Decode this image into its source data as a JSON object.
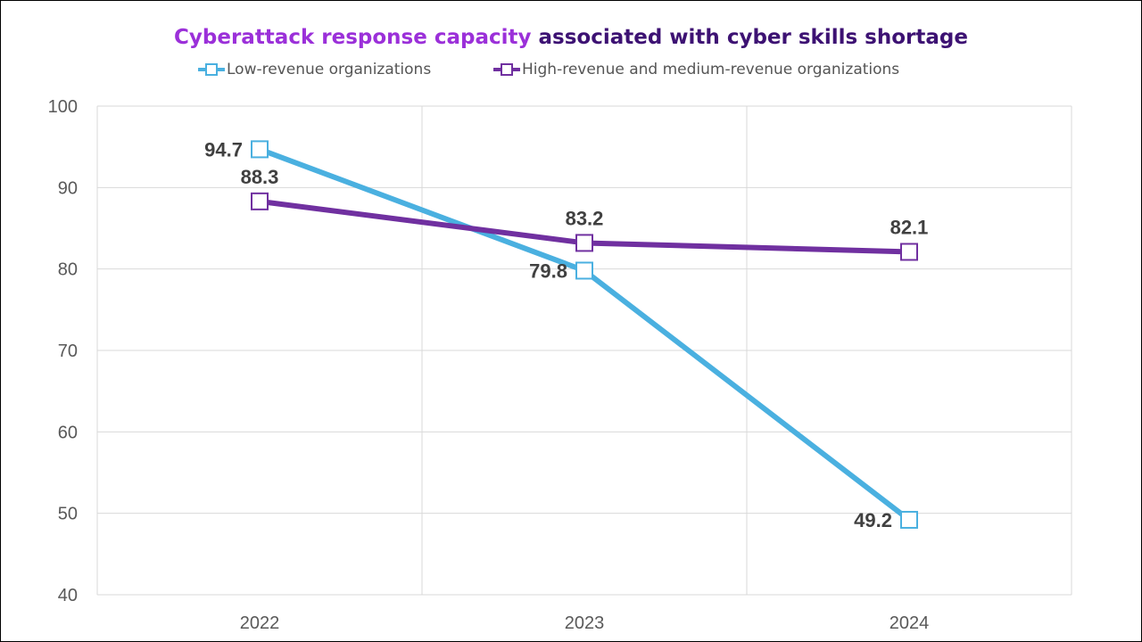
{
  "chart_data": {
    "type": "line",
    "title_part1": "Cyberattack response capacity",
    "title_part2": "associated with cyber skills shortage",
    "categories": [
      "2022",
      "2023",
      "2024"
    ],
    "ylim": [
      40,
      100
    ],
    "yticks": [
      40,
      50,
      60,
      70,
      80,
      90,
      100
    ],
    "grid": true,
    "legend_position": "top",
    "series": [
      {
        "name": "Low-revenue organizations",
        "values": [
          94.7,
          79.8,
          49.2
        ],
        "labels": [
          "94.7",
          "79.8",
          "49.2"
        ],
        "color": "#4ab0e0",
        "label_side": "left"
      },
      {
        "name": "High-revenue and medium-revenue organizations",
        "values": [
          88.3,
          83.2,
          82.1
        ],
        "labels": [
          "88.3",
          "83.2",
          "82.1"
        ],
        "color": "#7030a0",
        "label_side": "above"
      }
    ]
  },
  "colors": {
    "title_highlight": "#9b30d9",
    "title_main": "#3d1273",
    "gridline": "#d9d9d9",
    "axis_text": "#595959"
  }
}
